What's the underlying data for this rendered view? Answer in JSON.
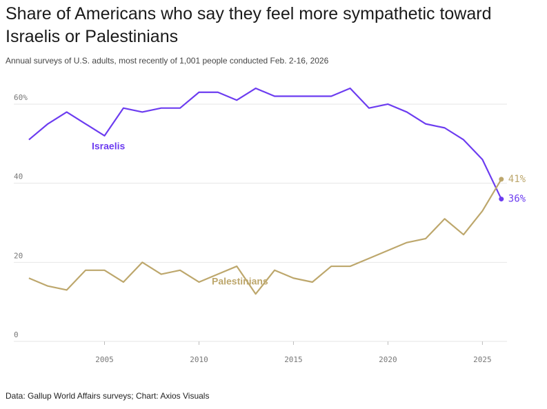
{
  "chart_data": {
    "type": "line",
    "title": "Share of Americans who say they feel more sympathetic toward Israelis or Palestinians",
    "subtitle": "Annual surveys of U.S. adults, most recently of 1,001 people conducted Feb. 2-16, 2026",
    "source": "Data: Gallup World Affairs surveys; Chart: Axios Visuals",
    "x": [
      2001,
      2002,
      2003,
      2004,
      2005,
      2006,
      2007,
      2008,
      2009,
      2010,
      2011,
      2012,
      2013,
      2014,
      2015,
      2016,
      2017,
      2018,
      2019,
      2020,
      2021,
      2022,
      2023,
      2024,
      2025,
      2026
    ],
    "series": [
      {
        "name": "Israelis",
        "color": "#6c3cf0",
        "values": [
          51,
          55,
          58,
          55,
          52,
          59,
          58,
          59,
          59,
          63,
          63,
          61,
          64,
          62,
          62,
          62,
          62,
          64,
          59,
          60,
          58,
          55,
          54,
          51,
          46,
          36
        ],
        "value_labels": [
          null,
          null,
          null,
          null,
          null,
          null,
          null,
          null,
          null,
          null,
          null,
          null,
          null,
          null,
          null,
          null,
          null,
          null,
          null,
          null,
          null,
          null,
          null,
          null,
          null,
          "36%"
        ]
      },
      {
        "name": "Palestinians",
        "color": "#bda76c",
        "values": [
          16,
          14,
          13,
          18,
          18,
          15,
          20,
          17,
          18,
          15,
          17,
          19,
          12,
          18,
          16,
          15,
          19,
          19,
          21,
          23,
          25,
          26,
          31,
          27,
          33,
          41
        ],
        "value_labels": [
          null,
          null,
          null,
          null,
          null,
          null,
          null,
          null,
          null,
          null,
          null,
          null,
          null,
          null,
          null,
          null,
          null,
          null,
          null,
          null,
          null,
          null,
          null,
          null,
          null,
          "41%"
        ]
      }
    ],
    "xlim": [
      2000.2,
      2026.3
    ],
    "xticks": [
      2005,
      2010,
      2015,
      2020,
      2025
    ],
    "ylim": [
      0,
      65
    ],
    "yticks": [
      0,
      20,
      40,
      {
        "value": 60,
        "label": "60%"
      }
    ],
    "grid": true
  }
}
